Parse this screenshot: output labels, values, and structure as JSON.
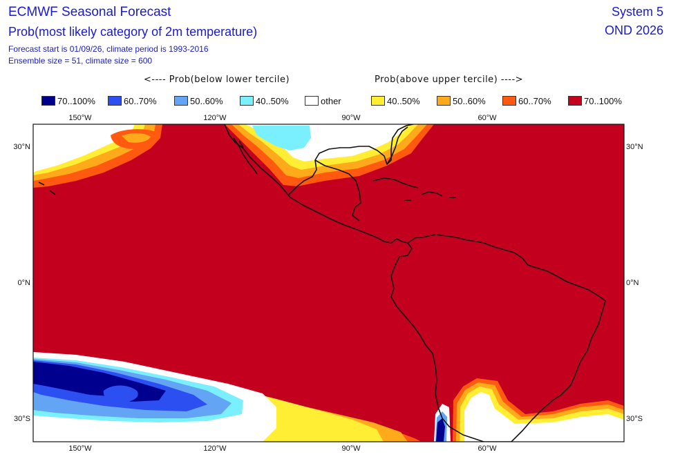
{
  "header": {
    "title": "ECMWF Seasonal Forecast",
    "subtitle": "Prob(most likely category of 2m temperature)",
    "forecast_info": "Forecast start is 01/09/26, climate period is 1993-2016",
    "ensemble_info": "Ensemble size = 51, climate size = 600",
    "system": "System 5",
    "period": "OND 2026"
  },
  "legend": {
    "below_caption": "<---- Prob(below lower tercile)",
    "above_caption": "Prob(above upper tercile) ---->",
    "items": [
      {
        "label": "70..100%",
        "color": "#00008f"
      },
      {
        "label": "60..70%",
        "color": "#2b4ff0"
      },
      {
        "label": "50..60%",
        "color": "#63a4f5"
      },
      {
        "label": "40..50%",
        "color": "#7af0ff"
      },
      {
        "label": "other",
        "color": "#ffffff"
      },
      {
        "label": "40..50%",
        "color": "#ffee33"
      },
      {
        "label": "50..60%",
        "color": "#ffaa1a"
      },
      {
        "label": "60..70%",
        "color": "#ff5a10"
      },
      {
        "label": "70..100%",
        "color": "#c4001f"
      }
    ]
  },
  "map": {
    "lon_ticks": [
      "150°W",
      "120°W",
      "90°W",
      "60°W"
    ],
    "lat_ticks": [
      "30°N",
      "0°N",
      "30°S"
    ],
    "dominant_category": "70..100%"
  }
}
